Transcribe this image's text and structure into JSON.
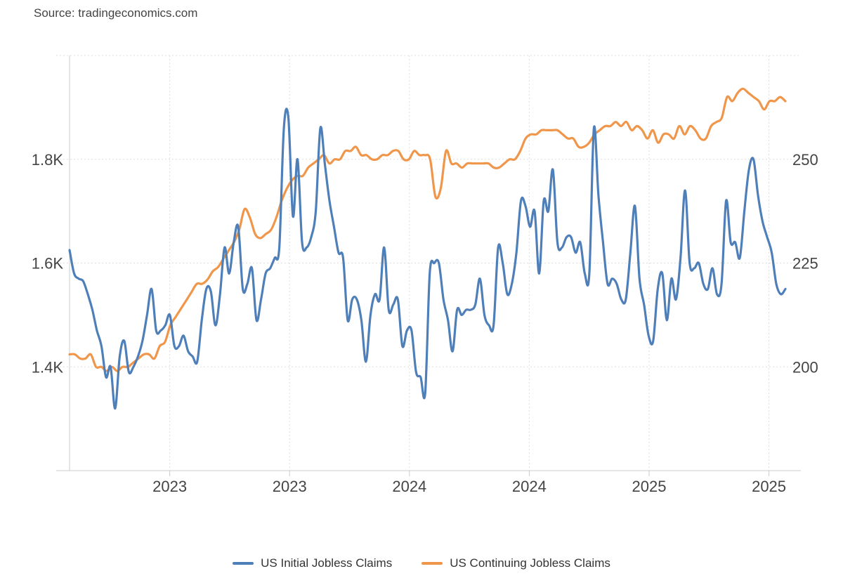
{
  "source_label": "Source: tradingeconomics.com",
  "colors": {
    "initial": "#4f7fb8",
    "continuing": "#f0964a",
    "grid": "#dddddd"
  },
  "chart_data": {
    "type": "line",
    "title": "",
    "x_tick_labels": [
      "2023",
      "2023",
      "2024",
      "2024",
      "2025",
      "2025"
    ],
    "left_axis": {
      "ticks": [
        "1.4K",
        "1.6K",
        "1.8K"
      ],
      "tick_values": [
        1400,
        1600,
        1800
      ],
      "ylim": [
        1200,
        2000
      ]
    },
    "right_axis": {
      "ticks": [
        "200",
        "225",
        "250"
      ],
      "tick_values": [
        200,
        225,
        250
      ],
      "ylim": [
        175,
        275
      ]
    },
    "series": [
      {
        "name": "US Initial Jobless Claims",
        "axis": "left",
        "values": [
          1625,
          1580,
          1570,
          1565,
          1540,
          1510,
          1470,
          1440,
          1380,
          1400,
          1320,
          1420,
          1450,
          1390,
          1400,
          1420,
          1450,
          1500,
          1550,
          1470,
          1470,
          1480,
          1500,
          1440,
          1440,
          1460,
          1430,
          1420,
          1410,
          1490,
          1550,
          1545,
          1480,
          1540,
          1630,
          1580,
          1640,
          1670,
          1550,
          1560,
          1590,
          1490,
          1530,
          1580,
          1590,
          1610,
          1630,
          1860,
          1880,
          1690,
          1800,
          1640,
          1630,
          1650,
          1700,
          1860,
          1790,
          1720,
          1670,
          1620,
          1610,
          1490,
          1530,
          1530,
          1490,
          1410,
          1500,
          1540,
          1530,
          1630,
          1510,
          1520,
          1530,
          1440,
          1470,
          1470,
          1390,
          1380,
          1350,
          1580,
          1600,
          1600,
          1530,
          1490,
          1430,
          1510,
          1500,
          1510,
          1510,
          1520,
          1570,
          1500,
          1480,
          1480,
          1630,
          1600,
          1540,
          1560,
          1620,
          1720,
          1710,
          1670,
          1700,
          1580,
          1720,
          1700,
          1780,
          1640,
          1630,
          1650,
          1650,
          1620,
          1640,
          1580,
          1580,
          1860,
          1730,
          1640,
          1560,
          1570,
          1560,
          1530,
          1530,
          1620,
          1710,
          1570,
          1520,
          1460,
          1450,
          1550,
          1580,
          1490,
          1570,
          1530,
          1610,
          1740,
          1600,
          1590,
          1600,
          1560,
          1550,
          1590,
          1540,
          1560,
          1720,
          1640,
          1640,
          1610,
          1700,
          1780,
          1800,
          1730,
          1680,
          1650,
          1620,
          1560,
          1540,
          1550
        ]
      },
      {
        "name": "US Continuing Jobless Claims",
        "axis": "right",
        "values": [
          203,
          203,
          202,
          202,
          203,
          200,
          200,
          199,
          200,
          199,
          200,
          200,
          201,
          202,
          203,
          203,
          202,
          205,
          206,
          210,
          212,
          214,
          216,
          218,
          220,
          220,
          221,
          223,
          224,
          226,
          228,
          230,
          233,
          238,
          236,
          232,
          231,
          232,
          233,
          236,
          240,
          243,
          245,
          246,
          246,
          248,
          249,
          250,
          251,
          249,
          250,
          250,
          252,
          252,
          253,
          251,
          251,
          250,
          250,
          251,
          251,
          252,
          252,
          250,
          250,
          252,
          251,
          251,
          250,
          241,
          243,
          252,
          249,
          249,
          248,
          249,
          249,
          249,
          249,
          249,
          248,
          248,
          249,
          250,
          250,
          252,
          255,
          256,
          256,
          257,
          257,
          257,
          257,
          256,
          255,
          255,
          253,
          253,
          254,
          256,
          257,
          258,
          258,
          259,
          258,
          259,
          257,
          258,
          257,
          255,
          257,
          254,
          256,
          256,
          255,
          258,
          256,
          258,
          257,
          255,
          255,
          258,
          259,
          260,
          265,
          264,
          266,
          267,
          266,
          265,
          264,
          262,
          264,
          264,
          265,
          264
        ]
      }
    ]
  },
  "legend": {
    "items": [
      {
        "label": "US Initial Jobless Claims"
      },
      {
        "label": "US Continuing Jobless Claims"
      }
    ]
  }
}
